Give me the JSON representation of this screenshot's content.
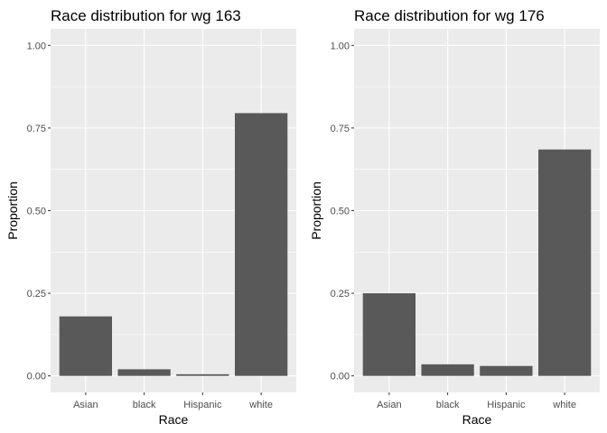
{
  "colors": {
    "panel_background": "#ebebeb",
    "grid_major": "#ffffff",
    "bar_fill": "#595959",
    "tick_text": "#4d4d4d",
    "tick_mark": "#333333",
    "text": "#000000"
  },
  "chart_data": [
    {
      "type": "bar",
      "title": "Race distribution for wg 163",
      "xlabel": "Race",
      "ylabel": "Proportion",
      "categories": [
        "Asian",
        "black",
        "Hispanic",
        "white"
      ],
      "values": [
        0.18,
        0.02,
        0.005,
        0.795
      ],
      "ylim": [
        0,
        1
      ],
      "yticks": [
        0,
        0.25,
        0.5,
        0.75,
        1
      ],
      "ytick_labels": [
        "0.00",
        "0.25",
        "0.50",
        "0.75",
        "1.00"
      ],
      "grid": true,
      "legend": "none"
    },
    {
      "type": "bar",
      "title": "Race distribution for wg 176",
      "xlabel": "Race",
      "ylabel": "Proportion",
      "categories": [
        "Asian",
        "black",
        "Hispanic",
        "white"
      ],
      "values": [
        0.25,
        0.035,
        0.03,
        0.685
      ],
      "ylim": [
        0,
        1
      ],
      "yticks": [
        0,
        0.25,
        0.5,
        0.75,
        1
      ],
      "ytick_labels": [
        "0.00",
        "0.25",
        "0.50",
        "0.75",
        "1.00"
      ],
      "grid": true,
      "legend": "none"
    }
  ]
}
